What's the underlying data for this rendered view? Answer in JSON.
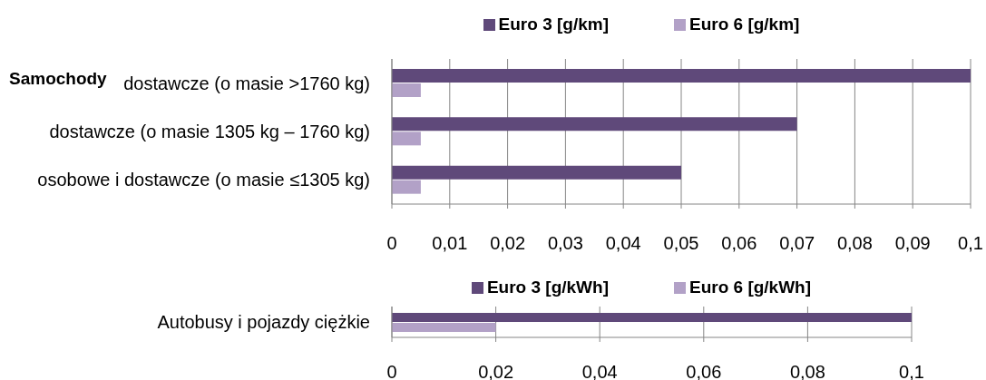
{
  "chart_data": [
    {
      "type": "bar",
      "orientation": "horizontal",
      "title": "Samochody",
      "categories": [
        "dostawcze (o masie >1760 kg)",
        "dostawcze (o masie 1305 kg – 1760 kg)",
        "osobowe i dostawcze (o masie ≤1305 kg)"
      ],
      "series": [
        {
          "name": "Euro 3 [g/km]",
          "color": "#5f497a",
          "values": [
            0.1,
            0.07,
            0.05
          ]
        },
        {
          "name": "Euro 6 [g/km]",
          "color": "#b2a1c7",
          "values": [
            0.005,
            0.005,
            0.005
          ]
        }
      ],
      "xlim": [
        0,
        0.1
      ],
      "xticks": [
        0,
        {
          "value": 0.01,
          "label": "0,01"
        },
        {
          "value": 0.02,
          "label": "0,02"
        },
        {
          "value": 0.03,
          "label": "0,03"
        },
        {
          "value": 0.04,
          "label": "0,04"
        },
        {
          "value": 0.05,
          "label": "0,05"
        },
        {
          "value": 0.06,
          "label": "0,06"
        },
        {
          "value": 0.07,
          "label": "0,07"
        },
        {
          "value": 0.08,
          "label": "0,08"
        },
        {
          "value": 0.09,
          "label": "0,09"
        },
        {
          "value": 0.1,
          "label": "0,1"
        }
      ],
      "grid": "x",
      "legend": "top"
    },
    {
      "type": "bar",
      "orientation": "horizontal",
      "categories": [
        "Autobusy i pojazdy ciężkie"
      ],
      "series": [
        {
          "name": "Euro 3 [g/kWh]",
          "color": "#5f497a",
          "values": [
            0.1
          ]
        },
        {
          "name": "Euro 6 [g/kWh]",
          "color": "#b2a1c7",
          "values": [
            0.02
          ]
        }
      ],
      "xlim": [
        0,
        0.1
      ],
      "xticks": [
        0,
        {
          "value": 0.02,
          "label": "0,02"
        },
        {
          "value": 0.04,
          "label": "0,04"
        },
        {
          "value": 0.06,
          "label": "0,06"
        },
        {
          "value": 0.08,
          "label": "0,08"
        },
        {
          "value": 0.1,
          "label": "0,1"
        }
      ],
      "grid": "x",
      "legend": "top"
    }
  ]
}
